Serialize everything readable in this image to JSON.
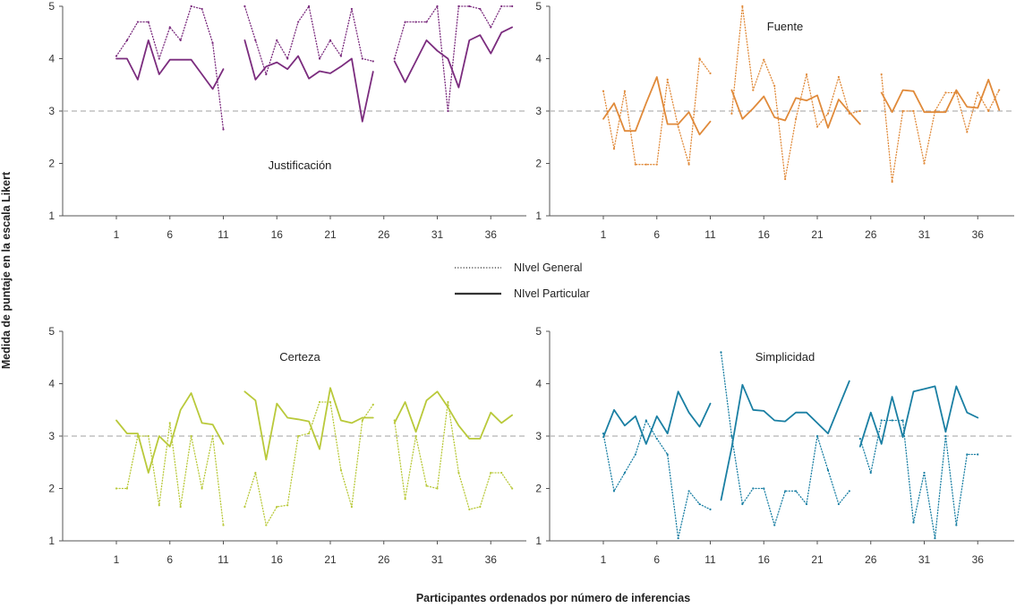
{
  "y_axis_label": "Medida de puntaje en la escala Likert",
  "x_axis_label": "Participantes ordenados por número de inferencias",
  "legend": {
    "general_label": "NIvel General",
    "particular_label": "NIvel Particular"
  },
  "chart_data": [
    {
      "type": "line",
      "title": "Justificación",
      "color": "#7b2c7e",
      "ylim": [
        1,
        5
      ],
      "xlim": [
        0,
        40
      ],
      "reference_line": 3,
      "yticks": [
        1,
        2,
        3,
        4,
        5
      ],
      "xticks": [
        1,
        6,
        11,
        16,
        21,
        26,
        31,
        36
      ],
      "series": [
        {
          "name": "NIvel General",
          "style": "dotted",
          "segments": [
            {
              "x": [
                1,
                2,
                3,
                4,
                5,
                6,
                7,
                8,
                9,
                10,
                11
              ],
              "y": [
                4.05,
                4.35,
                4.7,
                4.7,
                4.0,
                4.6,
                4.35,
                5.0,
                4.95,
                4.3,
                2.65
              ]
            },
            {
              "x": [
                13,
                14,
                15,
                16,
                17,
                18,
                19,
                20,
                21,
                22,
                23,
                24,
                25
              ],
              "y": [
                5.0,
                4.35,
                3.7,
                4.35,
                4.0,
                4.7,
                5.0,
                4.0,
                4.35,
                4.05,
                4.95,
                4.0,
                3.95
              ]
            },
            {
              "x": [
                27,
                28,
                29,
                30,
                31,
                32,
                33,
                34,
                35,
                36,
                37,
                38
              ],
              "y": [
                4.0,
                4.7,
                4.7,
                4.7,
                5.0,
                3.0,
                5.0,
                5.0,
                4.95,
                4.6,
                5.0,
                5.0
              ]
            }
          ]
        },
        {
          "name": "NIvel Particular",
          "style": "solid",
          "segments": [
            {
              "x": [
                1,
                2,
                3,
                4,
                5,
                6,
                7,
                8,
                9,
                10,
                11
              ],
              "y": [
                4.0,
                4.0,
                3.6,
                4.35,
                3.7,
                3.98,
                3.98,
                3.98,
                3.7,
                3.42,
                3.8
              ]
            },
            {
              "x": [
                13,
                14,
                15,
                16,
                17,
                18,
                19,
                20,
                21,
                22,
                23,
                24,
                25
              ],
              "y": [
                4.35,
                3.6,
                3.85,
                3.93,
                3.8,
                4.05,
                3.62,
                3.76,
                3.72,
                3.85,
                4.0,
                2.8,
                3.75
              ]
            },
            {
              "x": [
                27,
                28,
                29,
                30,
                31,
                32,
                33,
                34,
                35,
                36,
                37,
                38
              ],
              "y": [
                3.95,
                3.55,
                3.95,
                4.35,
                4.15,
                4.0,
                3.45,
                4.35,
                4.45,
                4.1,
                4.5,
                4.6
              ]
            }
          ]
        }
      ]
    },
    {
      "type": "line",
      "title": "Fuente",
      "color": "#e08a3a",
      "ylim": [
        1,
        5
      ],
      "xlim": [
        0,
        40
      ],
      "reference_line": 3,
      "yticks": [
        1,
        2,
        3,
        4,
        5
      ],
      "xticks": [
        1,
        6,
        11,
        16,
        21,
        26,
        31,
        36
      ],
      "series": [
        {
          "name": "NIvel General",
          "style": "dotted",
          "segments": [
            {
              "x": [
                1,
                2,
                3,
                4,
                5,
                6,
                7,
                8,
                9,
                10,
                11
              ],
              "y": [
                3.38,
                2.28,
                3.38,
                1.98,
                1.98,
                1.98,
                3.6,
                2.7,
                1.98,
                4.0,
                3.72
              ]
            },
            {
              "x": [
                13,
                14,
                15,
                16,
                17,
                18,
                19,
                20,
                21,
                22,
                23,
                24,
                25
              ],
              "y": [
                2.95,
                5.0,
                3.4,
                3.98,
                3.48,
                1.7,
                2.85,
                3.7,
                2.7,
                2.95,
                3.65,
                2.95,
                3.0
              ]
            },
            {
              "x": [
                27,
                28,
                29,
                30,
                31,
                32,
                33,
                34,
                35,
                36,
                37,
                38
              ],
              "y": [
                3.7,
                1.65,
                3.0,
                3.0,
                2.0,
                3.0,
                3.35,
                3.35,
                2.6,
                3.35,
                3.0,
                3.4
              ]
            }
          ]
        },
        {
          "name": "NIvel Particular",
          "style": "solid",
          "segments": [
            {
              "x": [
                1,
                2,
                3,
                4,
                5,
                6,
                7,
                8,
                9,
                10,
                11
              ],
              "y": [
                2.85,
                3.15,
                2.62,
                2.62,
                3.15,
                3.65,
                2.75,
                2.75,
                2.98,
                2.55,
                2.8
              ]
            },
            {
              "x": [
                13,
                14,
                15,
                16,
                17,
                18,
                19,
                20,
                21,
                22,
                23,
                24,
                25
              ],
              "y": [
                3.4,
                2.85,
                3.05,
                3.28,
                2.88,
                2.82,
                3.25,
                3.2,
                3.3,
                2.68,
                3.22,
                2.98,
                2.75
              ]
            },
            {
              "x": [
                27,
                28,
                29,
                30,
                31,
                32,
                33,
                34,
                35,
                36,
                37,
                38
              ],
              "y": [
                3.35,
                2.98,
                3.4,
                3.38,
                2.98,
                2.98,
                2.98,
                3.4,
                3.08,
                3.06,
                3.6,
                3.02
              ]
            }
          ]
        }
      ]
    },
    {
      "type": "line",
      "title": "Certeza",
      "color": "#b9c93a",
      "ylim": [
        1,
        5
      ],
      "xlim": [
        0,
        40
      ],
      "reference_line": 3,
      "yticks": [
        1,
        2,
        3,
        4,
        5
      ],
      "xticks": [
        1,
        6,
        11,
        16,
        21,
        26,
        31,
        36
      ],
      "series": [
        {
          "name": "NIvel General",
          "style": "dotted",
          "segments": [
            {
              "x": [
                1,
                2,
                3,
                4,
                5,
                6,
                7,
                8,
                9,
                10,
                11
              ],
              "y": [
                2.0,
                2.0,
                3.0,
                3.0,
                1.68,
                3.25,
                1.65,
                3.0,
                2.0,
                3.0,
                1.3
              ]
            },
            {
              "x": [
                13,
                14,
                15,
                16,
                17,
                18,
                19,
                20,
                21,
                22,
                23,
                24,
                25
              ],
              "y": [
                1.65,
                2.3,
                1.3,
                1.65,
                1.68,
                3.0,
                3.05,
                3.65,
                3.65,
                2.35,
                1.65,
                3.3,
                3.6
              ]
            },
            {
              "x": [
                27,
                28,
                29,
                30,
                31,
                32,
                33,
                34,
                35,
                36,
                37,
                38
              ],
              "y": [
                3.3,
                1.8,
                3.0,
                2.05,
                2.0,
                3.65,
                2.3,
                1.6,
                1.65,
                2.3,
                2.3,
                2.0
              ]
            }
          ]
        },
        {
          "name": "NIvel Particular",
          "style": "solid",
          "segments": [
            {
              "x": [
                1,
                2,
                3,
                4,
                5,
                6,
                7,
                8,
                9,
                10,
                11
              ],
              "y": [
                3.3,
                3.05,
                3.05,
                2.3,
                3.0,
                2.8,
                3.5,
                3.82,
                3.25,
                3.22,
                2.85
              ]
            },
            {
              "x": [
                13,
                14,
                15,
                16,
                17,
                18,
                19,
                20,
                21,
                22,
                23,
                24,
                25
              ],
              "y": [
                3.85,
                3.68,
                2.55,
                3.62,
                3.35,
                3.32,
                3.28,
                2.75,
                3.92,
                3.3,
                3.25,
                3.35,
                3.35
              ]
            },
            {
              "x": [
                27,
                28,
                29,
                30,
                31,
                32,
                33,
                34,
                35,
                36,
                37,
                38
              ],
              "y": [
                3.25,
                3.65,
                3.08,
                3.68,
                3.85,
                3.55,
                3.2,
                2.95,
                2.95,
                3.45,
                3.25,
                3.4
              ]
            }
          ]
        }
      ]
    },
    {
      "type": "line",
      "title": "Simplicidad",
      "color": "#1a7fa3",
      "ylim": [
        1,
        5
      ],
      "xlim": [
        0,
        40
      ],
      "reference_line": 3,
      "yticks": [
        1,
        2,
        3,
        4,
        5
      ],
      "xticks": [
        1,
        6,
        11,
        16,
        21,
        26,
        31,
        36
      ],
      "series": [
        {
          "name": "NIvel General",
          "style": "dotted",
          "segments": [
            {
              "x": [
                1,
                2,
                3,
                4,
                5,
                6,
                7,
                8,
                9,
                10,
                11
              ],
              "y": [
                3.05,
                1.95,
                2.3,
                2.65,
                3.3,
                2.95,
                2.65,
                1.05,
                1.95,
                1.7,
                1.6
              ]
            },
            {
              "x": [
                12,
                13,
                14,
                15,
                16,
                17,
                18,
                19,
                20,
                21,
                22,
                23,
                24
              ],
              "y": [
                4.6,
                3.0,
                1.7,
                2.0,
                2.0,
                1.3,
                1.95,
                1.95,
                1.7,
                3.0,
                2.35,
                1.7,
                1.95
              ]
            },
            {
              "x": [
                25,
                26,
                27,
                28,
                29,
                30,
                31,
                32,
                33,
                34,
                35,
                36
              ],
              "y": [
                2.95,
                2.3,
                3.3,
                3.3,
                3.3,
                1.35,
                2.3,
                1.05,
                3.0,
                1.3,
                2.65,
                2.65
              ]
            }
          ]
        },
        {
          "name": "NIvel Particular",
          "style": "solid",
          "segments": [
            {
              "x": [
                1,
                2,
                3,
                4,
                5,
                6,
                7,
                8,
                9,
                10,
                11
              ],
              "y": [
                2.98,
                3.5,
                3.2,
                3.38,
                2.85,
                3.38,
                3.05,
                3.85,
                3.45,
                3.18,
                3.62
              ]
            },
            {
              "x": [
                12,
                13,
                14,
                15,
                16,
                17,
                18,
                19,
                20,
                21,
                22,
                23,
                24
              ],
              "y": [
                1.78,
                2.78,
                3.98,
                3.5,
                3.48,
                3.3,
                3.28,
                3.45,
                3.45,
                3.25,
                3.05,
                3.55,
                4.05
              ]
            },
            {
              "x": [
                25,
                26,
                27,
                28,
                29,
                30,
                31,
                32,
                33,
                34,
                35,
                36
              ],
              "y": [
                2.8,
                3.45,
                2.85,
                3.75,
                2.98,
                3.85,
                3.9,
                3.95,
                3.08,
                3.95,
                3.45,
                3.35
              ]
            }
          ]
        }
      ]
    }
  ]
}
